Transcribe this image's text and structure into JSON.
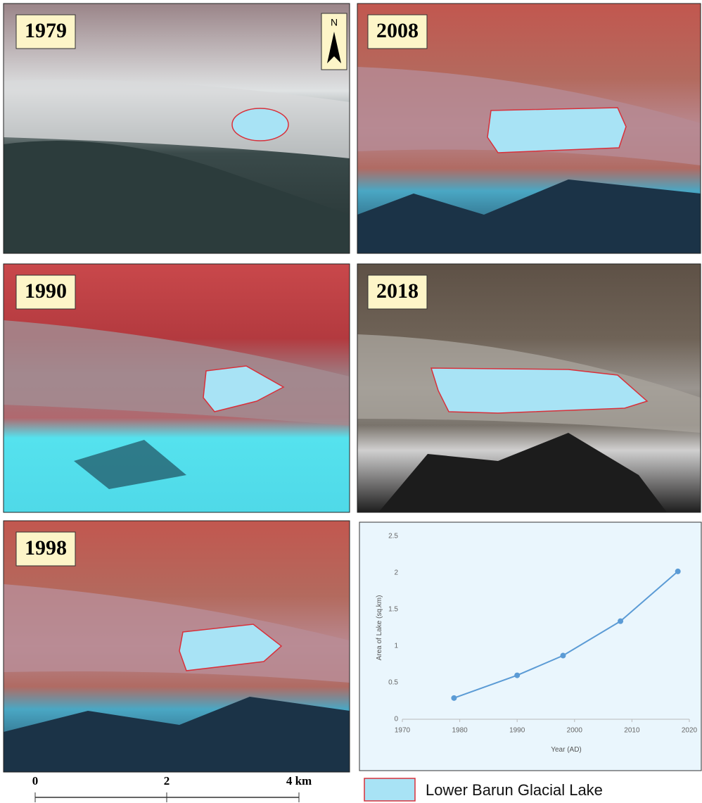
{
  "panels": [
    {
      "label": "1979"
    },
    {
      "label": "2008"
    },
    {
      "label": "1990"
    },
    {
      "label": "2018"
    },
    {
      "label": "1998"
    }
  ],
  "compass": "N",
  "scale_bar": {
    "labels": [
      "0",
      "2",
      "4 km"
    ]
  },
  "legend": {
    "label": "Lower Barun Glacial Lake"
  },
  "chart_data": {
    "type": "line",
    "x_label": "Year (AD)",
    "y_label": "Area of Lake (sq.km)",
    "x": [
      1979,
      1990,
      1998,
      2008,
      2018
    ],
    "values": [
      0.29,
      0.6,
      0.87,
      1.34,
      2.02
    ],
    "color": "#5b9bd5",
    "xlim": [
      1970,
      2020
    ],
    "xticks": [
      1970,
      1980,
      1990,
      2000,
      2010,
      2020
    ],
    "ylim": [
      0,
      2.5
    ],
    "yticks": [
      0,
      0.5,
      1,
      1.5,
      2,
      2.5
    ],
    "grid": false
  }
}
